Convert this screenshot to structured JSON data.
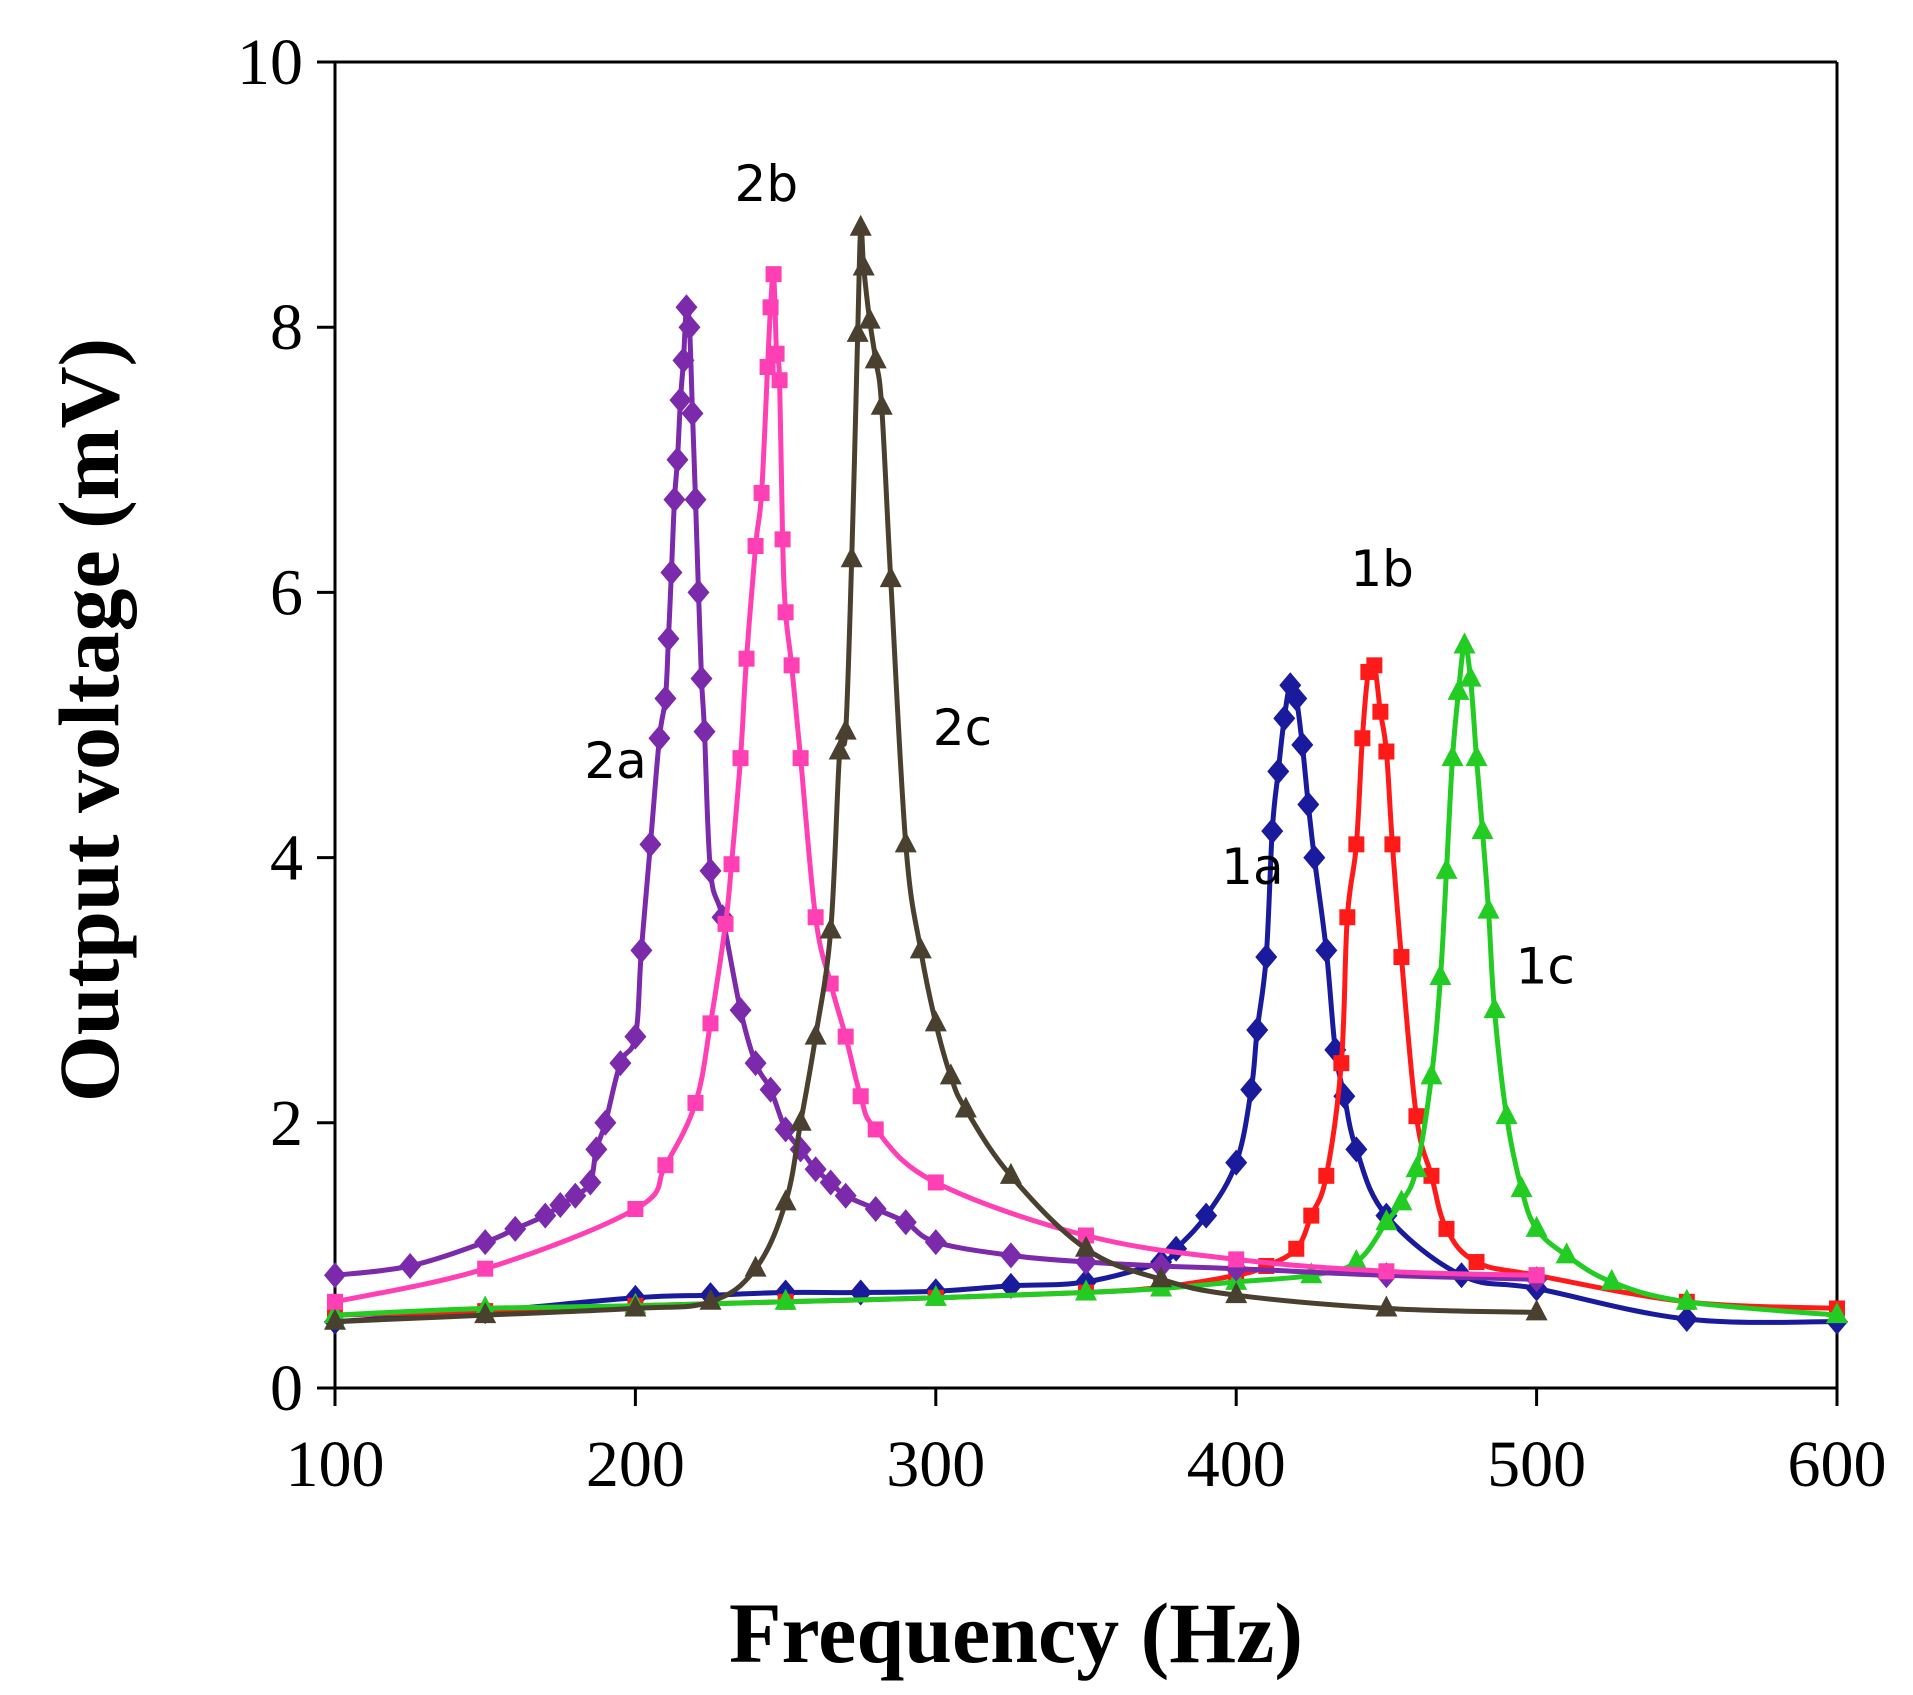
{
  "chart_data": {
    "type": "line",
    "title": "",
    "xlabel": "Frequency (Hz)",
    "ylabel": "Output voltage (mV)",
    "xlim": [
      100,
      600
    ],
    "ylim": [
      0,
      10
    ],
    "xticks": [
      100,
      200,
      300,
      400,
      500,
      600
    ],
    "yticks": [
      0,
      2,
      4,
      6,
      8,
      10
    ],
    "grid": false,
    "series": [
      {
        "name": "1a",
        "color": "#1a1a9c",
        "marker": "diamond",
        "label_at": [
          395,
          3.8
        ],
        "x": [
          100,
          150,
          200,
          225,
          250,
          275,
          300,
          325,
          350,
          375,
          380,
          390,
          400,
          405,
          407,
          410,
          412,
          414,
          416,
          418,
          420,
          422,
          424,
          426,
          430,
          433,
          436,
          440,
          450,
          475,
          500,
          550,
          600
        ],
        "y": [
          0.5,
          0.58,
          0.68,
          0.7,
          0.72,
          0.72,
          0.73,
          0.77,
          0.8,
          0.95,
          1.05,
          1.3,
          1.7,
          2.25,
          2.7,
          3.25,
          4.2,
          4.65,
          5.05,
          5.3,
          5.2,
          4.85,
          4.4,
          4.0,
          3.3,
          2.55,
          2.2,
          1.8,
          1.3,
          0.85,
          0.75,
          0.52,
          0.5
        ]
      },
      {
        "name": "1b",
        "color": "#ff1a1a",
        "marker": "square",
        "label_at": [
          438,
          6.05
        ],
        "x": [
          100,
          150,
          200,
          250,
          300,
          350,
          375,
          400,
          410,
          420,
          425,
          430,
          435,
          437,
          440,
          442,
          444,
          446,
          448,
          450,
          452,
          455,
          460,
          465,
          470,
          480,
          500,
          550,
          600
        ],
        "y": [
          0.55,
          0.58,
          0.62,
          0.65,
          0.68,
          0.72,
          0.76,
          0.85,
          0.92,
          1.05,
          1.3,
          1.6,
          2.45,
          3.55,
          4.1,
          4.9,
          5.4,
          5.45,
          5.1,
          4.8,
          4.1,
          3.25,
          2.05,
          1.6,
          1.2,
          0.95,
          0.85,
          0.65,
          0.6
        ]
      },
      {
        "name": "1c",
        "color": "#22cc22",
        "marker": "triangle",
        "label_at": [
          493,
          3.05
        ],
        "x": [
          100,
          150,
          200,
          250,
          300,
          350,
          375,
          400,
          425,
          440,
          450,
          455,
          460,
          465,
          468,
          470,
          472,
          474,
          476,
          478,
          480,
          482,
          484,
          486,
          490,
          495,
          500,
          510,
          525,
          550,
          600
        ],
        "y": [
          0.55,
          0.6,
          0.62,
          0.65,
          0.68,
          0.72,
          0.75,
          0.8,
          0.85,
          0.95,
          1.25,
          1.4,
          1.65,
          2.35,
          3.1,
          3.9,
          4.75,
          5.25,
          5.6,
          5.35,
          4.75,
          4.2,
          3.6,
          2.85,
          2.05,
          1.5,
          1.2,
          1.0,
          0.8,
          0.65,
          0.55
        ]
      },
      {
        "name": "2a",
        "color": "#7a2aaa",
        "marker": "diamond",
        "label_at": [
          183,
          4.6
        ],
        "x": [
          100,
          125,
          150,
          160,
          170,
          175,
          180,
          185,
          187,
          190,
          195,
          200,
          202,
          205,
          208,
          210,
          211,
          212,
          213,
          214,
          215,
          216,
          217,
          218,
          219,
          220,
          221,
          222,
          223,
          225,
          229,
          235,
          240,
          245,
          250,
          255,
          260,
          265,
          270,
          280,
          290,
          300,
          325,
          350,
          375,
          400,
          450,
          500
        ],
        "y": [
          0.85,
          0.92,
          1.1,
          1.2,
          1.3,
          1.38,
          1.45,
          1.55,
          1.8,
          2.0,
          2.45,
          2.65,
          3.3,
          4.1,
          4.9,
          5.2,
          5.65,
          6.15,
          6.7,
          7.0,
          7.45,
          7.75,
          8.15,
          8.0,
          7.35,
          6.7,
          6.0,
          5.35,
          4.95,
          3.9,
          3.55,
          2.85,
          2.45,
          2.25,
          1.95,
          1.8,
          1.65,
          1.55,
          1.45,
          1.35,
          1.25,
          1.1,
          1.0,
          0.95,
          0.92,
          0.9,
          0.85,
          0.82
        ]
      },
      {
        "name": "2b",
        "color": "#ff3fb4",
        "marker": "square",
        "label_at": [
          233,
          8.95
        ],
        "x": [
          100,
          150,
          200,
          210,
          220,
          225,
          230,
          232,
          235,
          237,
          240,
          242,
          244,
          245,
          246,
          247,
          248,
          249,
          250,
          252,
          255,
          260,
          265,
          270,
          275,
          280,
          300,
          350,
          400,
          450,
          500
        ],
        "y": [
          0.65,
          0.9,
          1.35,
          1.68,
          2.15,
          2.75,
          3.5,
          3.95,
          4.75,
          5.5,
          6.35,
          6.75,
          7.7,
          8.15,
          8.4,
          7.8,
          7.6,
          6.4,
          5.85,
          5.45,
          4.75,
          3.55,
          3.05,
          2.65,
          2.2,
          1.95,
          1.55,
          1.15,
          0.97,
          0.88,
          0.85
        ]
      },
      {
        "name": "2c",
        "color": "#4a4030",
        "marker": "triangle",
        "label_at": [
          299,
          4.85
        ],
        "x": [
          100,
          150,
          200,
          225,
          240,
          250,
          255,
          260,
          265,
          268,
          270,
          272,
          274,
          275,
          276,
          278,
          280,
          282,
          285,
          290,
          295,
          300,
          305,
          310,
          325,
          350,
          375,
          400,
          450,
          500
        ],
        "y": [
          0.5,
          0.55,
          0.6,
          0.65,
          0.9,
          1.4,
          2.0,
          2.65,
          3.45,
          4.8,
          4.95,
          6.25,
          7.95,
          8.75,
          8.45,
          8.05,
          7.75,
          7.4,
          6.1,
          4.1,
          3.3,
          2.75,
          2.35,
          2.1,
          1.6,
          1.05,
          0.82,
          0.7,
          0.6,
          0.57
        ]
      }
    ]
  }
}
